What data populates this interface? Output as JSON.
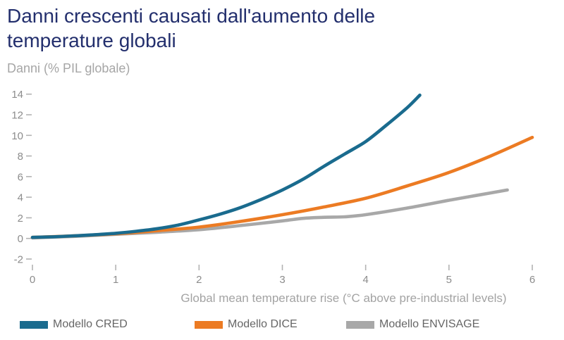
{
  "header": {
    "title": "Danni crescenti causati dall'aumento delle temperature globali",
    "subtitle": "Danni (% PIL globale)"
  },
  "chart_data": {
    "type": "line",
    "title": "Danni crescenti causati dall'aumento delle temperature globali",
    "ylabel": "Danni (% PIL globale)",
    "xlabel": "Global mean temperature rise (°C above pre-industrial levels)",
    "xlim": [
      0,
      6
    ],
    "ylim": [
      -2,
      14
    ],
    "x_ticks": [
      0,
      1,
      2,
      3,
      4,
      5,
      6
    ],
    "y_ticks": [
      14,
      12,
      10,
      8,
      6,
      4,
      2,
      0,
      -2
    ],
    "grid": false,
    "legend_position": "bottom",
    "series": [
      {
        "name": "Modello CRED",
        "color": "#1a6b8e",
        "points": [
          [
            0,
            0.1
          ],
          [
            0.25,
            0.16
          ],
          [
            0.5,
            0.25
          ],
          [
            0.75,
            0.36
          ],
          [
            1,
            0.5
          ],
          [
            1.25,
            0.7
          ],
          [
            1.5,
            0.95
          ],
          [
            1.75,
            1.3
          ],
          [
            2,
            1.8
          ],
          [
            2.25,
            2.35
          ],
          [
            2.5,
            3.0
          ],
          [
            2.75,
            3.8
          ],
          [
            3,
            4.7
          ],
          [
            3.25,
            5.75
          ],
          [
            3.5,
            7.0
          ],
          [
            3.75,
            8.2
          ],
          [
            4,
            9.4
          ],
          [
            4.25,
            11.0
          ],
          [
            4.5,
            12.7
          ],
          [
            4.65,
            13.9
          ]
        ]
      },
      {
        "name": "Modello DICE",
        "color": "#ec7b23",
        "points": [
          [
            0,
            0.1
          ],
          [
            0.5,
            0.25
          ],
          [
            1,
            0.45
          ],
          [
            1.5,
            0.75
          ],
          [
            2,
            1.1
          ],
          [
            2.5,
            1.65
          ],
          [
            3,
            2.3
          ],
          [
            3.5,
            3.05
          ],
          [
            4,
            3.9
          ],
          [
            4.5,
            5.1
          ],
          [
            5,
            6.4
          ],
          [
            5.5,
            8.0
          ],
          [
            6,
            9.8
          ]
        ]
      },
      {
        "name": "Modello ENVISAGE",
        "color": "#a8a8a8",
        "points": [
          [
            0,
            0.05
          ],
          [
            0.5,
            0.2
          ],
          [
            1,
            0.4
          ],
          [
            1.5,
            0.6
          ],
          [
            2,
            0.85
          ],
          [
            2.5,
            1.25
          ],
          [
            3,
            1.7
          ],
          [
            3.25,
            1.95
          ],
          [
            3.5,
            2.05
          ],
          [
            3.75,
            2.1
          ],
          [
            4,
            2.3
          ],
          [
            4.5,
            2.95
          ],
          [
            5,
            3.7
          ],
          [
            5.35,
            4.2
          ],
          [
            5.7,
            4.7
          ]
        ]
      }
    ],
    "style": {
      "title_color": "#232f6d",
      "axis_text_color": "#8c8c8c",
      "muted_text_color": "#a3a3a3",
      "legend_text_color": "#666666",
      "tick_mark_color": "#b3b3b3"
    }
  }
}
